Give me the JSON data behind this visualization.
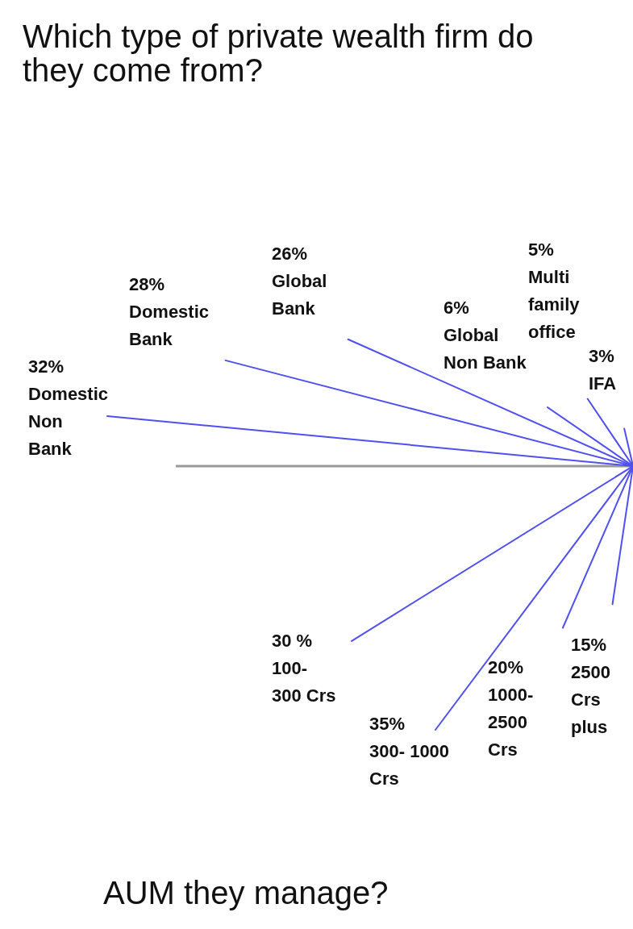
{
  "chart_data": [
    {
      "type": "other",
      "title": "Which type of private wealth firm do they come from?",
      "categories": [
        "Domestic Non Bank",
        "Domestic Bank",
        "Global Bank",
        "Global Non Bank",
        "Multi family office",
        "IFA"
      ],
      "values": [
        32,
        28,
        26,
        6,
        5,
        3
      ],
      "value_labels": [
        "32%",
        "28%",
        "26%",
        "6%",
        "5%",
        "3%"
      ],
      "color": "#5050f0"
    },
    {
      "type": "other",
      "title": "AUM they manage?",
      "categories": [
        "100- 300 Crs",
        "300- 1000 Crs",
        "1000- 2500 Crs",
        "2500 Crs plus"
      ],
      "values": [
        30,
        35,
        20,
        15
      ],
      "value_labels": [
        "30 %",
        "35%",
        "20%",
        "15%"
      ],
      "color": "#5050f0"
    }
  ]
}
